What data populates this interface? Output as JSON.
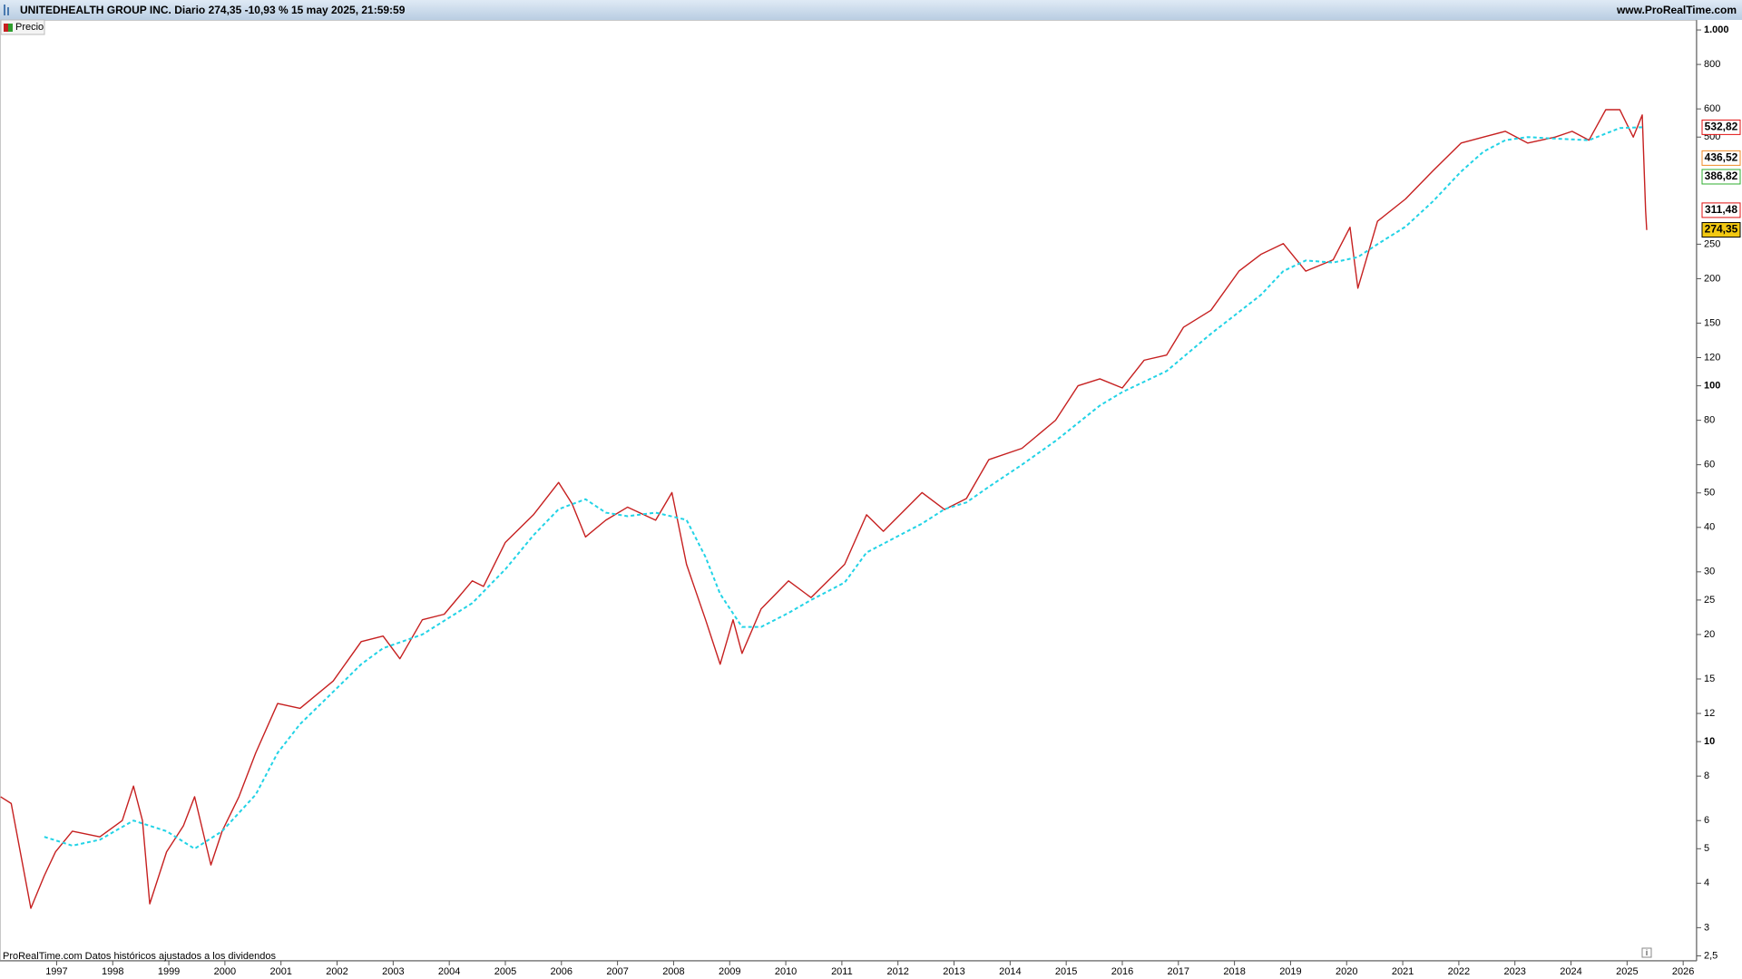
{
  "chart_data": {
    "type": "line",
    "title": "UNITEDHEALTH GROUP INC. Diario 274,35 -10,93 % 15 may 2025, 21:59:59",
    "source": "www.ProRealTime.com",
    "footer": "ProRealTime.com  Datos históricos ajustados a los dividendos",
    "log_scale": true,
    "xlim": [
      1995.99,
      2026.24
    ],
    "xticks": [
      1997,
      1998,
      1999,
      2000,
      2001,
      2002,
      2003,
      2004,
      2005,
      2006,
      2007,
      2008,
      2009,
      2010,
      2011,
      2012,
      2013,
      2014,
      2015,
      2016,
      2017,
      2018,
      2019,
      2020,
      2021,
      2022,
      2023,
      2024,
      2025,
      2026
    ],
    "ylim": [
      2.42,
      1067
    ],
    "yticks": [
      {
        "value": 1000,
        "label": "1.000"
      },
      800,
      600,
      500,
      250,
      200,
      150,
      120,
      100,
      80,
      60,
      50,
      40,
      30,
      25,
      20,
      15,
      12,
      10,
      8,
      6,
      5,
      4,
      3,
      {
        "value": 2.5,
        "label": "2,5"
      }
    ],
    "series": [
      {
        "name": "Precio",
        "color": "#c62020",
        "style": "solid",
        "x": [
          1996.0,
          1996.19,
          1996.54,
          1996.78,
          1996.98,
          1997.28,
          1997.77,
          1998.17,
          1998.37,
          1998.53,
          1998.66,
          1998.96,
          1999.26,
          1999.46,
          1999.75,
          1999.95,
          2000.25,
          2000.55,
          2000.94,
          2001.34,
          2001.93,
          2002.43,
          2002.82,
          2003.12,
          2003.52,
          2003.91,
          2004.41,
          2004.61,
          2005.0,
          2005.5,
          2005.95,
          2006.19,
          2006.43,
          2006.79,
          2007.18,
          2007.68,
          2007.97,
          2008.23,
          2008.57,
          2008.83,
          2009.06,
          2009.22,
          2009.56,
          2010.05,
          2010.45,
          2011.05,
          2011.44,
          2011.74,
          2012.43,
          2012.83,
          2013.22,
          2013.62,
          2014.21,
          2014.81,
          2015.21,
          2015.6,
          2016.0,
          2016.39,
          2016.79,
          2017.09,
          2017.58,
          2018.08,
          2018.47,
          2018.87,
          2019.27,
          2019.76,
          2020.06,
          2020.2,
          2020.55,
          2021.05,
          2021.54,
          2022.04,
          2022.44,
          2022.83,
          2023.23,
          2023.72,
          2024.02,
          2024.32,
          2024.62,
          2024.87,
          2025.11,
          2025.27,
          2025.33,
          2025.35
        ],
        "values": [
          7.0,
          6.7,
          3.4,
          4.2,
          4.9,
          5.6,
          5.4,
          6.0,
          7.5,
          6.0,
          3.5,
          4.9,
          5.8,
          7.0,
          4.5,
          5.6,
          7.0,
          9.3,
          12.8,
          12.4,
          14.8,
          19.1,
          19.8,
          17.1,
          22.0,
          22.8,
          28.3,
          27.3,
          36.3,
          43.4,
          53.5,
          46.6,
          37.6,
          41.9,
          45.6,
          41.9,
          50.1,
          31.5,
          22,
          16.5,
          22,
          17.7,
          23.6,
          28.3,
          25.4,
          31.5,
          43.4,
          39,
          50.1,
          44.9,
          48.2,
          62,
          66.7,
          80,
          100,
          104.6,
          98.6,
          118,
          122,
          146,
          163,
          210,
          234,
          251,
          210,
          226,
          279,
          188,
          290,
          335,
          402,
          481,
          500,
          519,
          481,
          500,
          519,
          490,
          597,
          597,
          500,
          577,
          311,
          274
        ]
      },
      {
        "color": "#22d3e6",
        "style": "dashed",
        "x": [
          1996.78,
          1997.28,
          1997.77,
          1998.37,
          1998.96,
          1999.46,
          1999.95,
          2000.55,
          2000.94,
          2001.34,
          2001.93,
          2002.43,
          2002.82,
          2003.52,
          2004.41,
          2005.0,
          2005.5,
          2005.95,
          2006.43,
          2006.79,
          2007.18,
          2007.68,
          2008.23,
          2008.57,
          2008.83,
          2009.22,
          2009.56,
          2010.05,
          2010.45,
          2011.05,
          2011.44,
          2012.43,
          2012.83,
          2013.22,
          2013.62,
          2014.21,
          2014.81,
          2015.6,
          2016.0,
          2016.79,
          2017.58,
          2018.47,
          2018.87,
          2019.27,
          2019.76,
          2020.2,
          2020.55,
          2021.05,
          2021.54,
          2022.04,
          2022.44,
          2022.83,
          2023.23,
          2023.72,
          2024.32,
          2024.87,
          2025.27
        ],
        "values": [
          5.4,
          5.1,
          5.3,
          6.0,
          5.6,
          5.0,
          5.6,
          7.1,
          9.3,
          11.2,
          13.8,
          16.5,
          18.3,
          20.0,
          24.5,
          30.5,
          38,
          45,
          48,
          44,
          43,
          44,
          42,
          33,
          26,
          21,
          21,
          23,
          25,
          28,
          34,
          41,
          45,
          47,
          52,
          60,
          70,
          88,
          96,
          110,
          140,
          180,
          210,
          225,
          222,
          230,
          250,
          280,
          330,
          400,
          455,
          490,
          500,
          495,
          490,
          530,
          532.82
        ]
      }
    ],
    "price_labels": [
      {
        "value": 532.82,
        "label": "532,82",
        "color": "#e01010",
        "fill": "#ffffff"
      },
      {
        "value": 436.52,
        "label": "436,52",
        "color": "#f08a24",
        "fill": "#ffffff"
      },
      {
        "value": 386.82,
        "label": "386,82",
        "color": "#2fae2f",
        "fill": "#ffffff"
      },
      {
        "value": 311.48,
        "label": "311,48",
        "color": "#e01010",
        "fill": "#ffffff"
      },
      {
        "value": 274.35,
        "label": "274,35",
        "color": "#000000",
        "fill": "#f2c811"
      }
    ]
  }
}
